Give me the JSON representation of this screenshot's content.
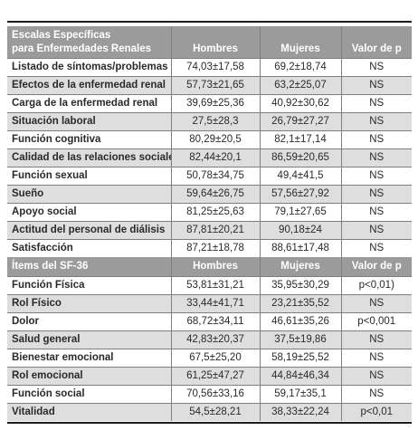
{
  "table1": {
    "header": {
      "col1_line1": "Escalas Específicas",
      "col1_line2": "para Enfermedades Renales",
      "col2": "Hombres",
      "col3": "Mujeres",
      "col4": "Valor de p"
    },
    "rows": [
      {
        "label": "Listado de síntomas/problemas",
        "hombres": "74,03±17,58",
        "mujeres": "69,2±18,74",
        "p": "NS"
      },
      {
        "label": "Efectos de la enfermedad renal",
        "hombres": "57,73±21,65",
        "mujeres": "63,2±25,07",
        "p": "NS"
      },
      {
        "label": "Carga de la enfermedad renal",
        "hombres": "39,69±25,36",
        "mujeres": "40,92±30,62",
        "p": "NS"
      },
      {
        "label": "Situación laboral",
        "hombres": "27,5±28,3",
        "mujeres": "26,79±27,27",
        "p": "NS"
      },
      {
        "label": "Función cognitiva",
        "hombres": "80,29±20,5",
        "mujeres": "82,1±17,14",
        "p": "NS"
      },
      {
        "label": "Calidad de las relaciones sociales",
        "hombres": "82,44±20,1",
        "mujeres": "86,59±20,65",
        "p": "NS"
      },
      {
        "label": "Función sexual",
        "hombres": "50,78±34,75",
        "mujeres": "49,4±41,5",
        "p": "NS"
      },
      {
        "label": "Sueño",
        "hombres": "59,64±26,75",
        "mujeres": "57,56±27,92",
        "p": "NS"
      },
      {
        "label": "Apoyo social",
        "hombres": "81,25±25,63",
        "mujeres": "79,1±27,65",
        "p": "NS"
      },
      {
        "label": "Actitud del personal de diálisis",
        "hombres": "87,81±20,21",
        "mujeres": "90,18±24",
        "p": "NS"
      },
      {
        "label": "Satisfacción",
        "hombres": "87,21±18,78",
        "mujeres": "88,61±17,48",
        "p": "NS"
      }
    ]
  },
  "table2": {
    "header": {
      "col1": "Ítems del SF-36",
      "col2": "Hombres",
      "col3": "Mujeres",
      "col4": "Valor de p"
    },
    "rows": [
      {
        "label": "Función Física",
        "hombres": "53,81±31,21",
        "mujeres": "35,95±30,29",
        "p": "p<0,01)"
      },
      {
        "label": "Rol Físico",
        "hombres": "33,44±41,71",
        "mujeres": "23,21±35,52",
        "p": "NS"
      },
      {
        "label": "Dolor",
        "hombres": "68,72±34,11",
        "mujeres": "46,61±35,26",
        "p": "p<0,001"
      },
      {
        "label": "Salud general",
        "hombres": "42,83±20,37",
        "mujeres": "37,5±19,86",
        "p": "NS"
      },
      {
        "label": "Bienestar emocional",
        "hombres": "67,5±25,20",
        "mujeres": "58,19±25,52",
        "p": "NS"
      },
      {
        "label": "Rol emocional",
        "hombres": "61,25±47,27",
        "mujeres": "44,84±46,34",
        "p": "NS"
      },
      {
        "label": "Función social",
        "hombres": "70,56±33,16",
        "mujeres": "59,17±35,1",
        "p": "NS"
      },
      {
        "label": "Vitalidad",
        "hombres": "54,5±28,21",
        "mujeres": "38,33±22,24",
        "p": "p<0,01"
      }
    ]
  }
}
